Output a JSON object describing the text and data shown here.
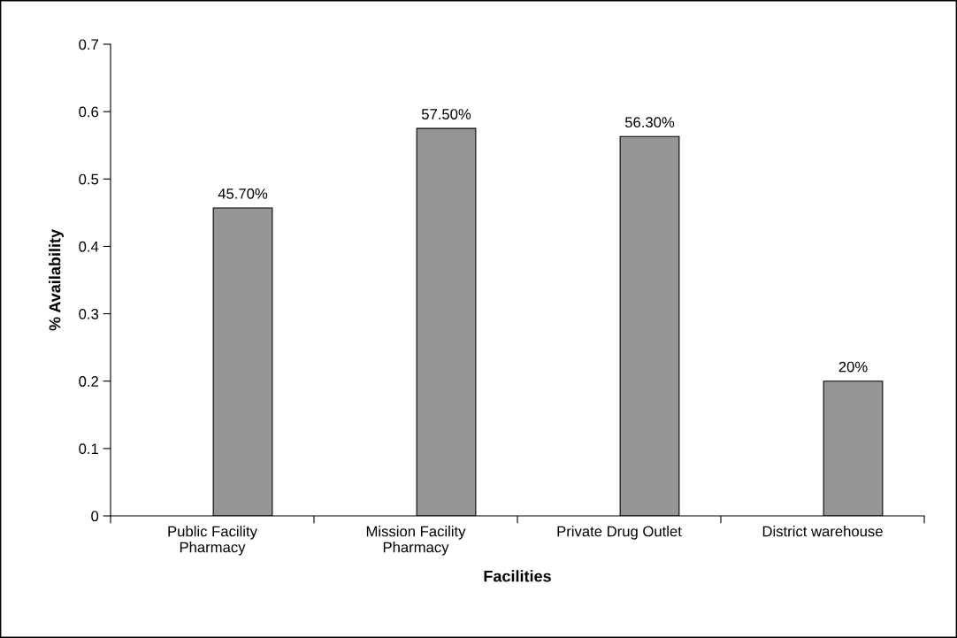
{
  "chart_data": {
    "type": "bar",
    "categories": [
      "Public Facility\nPharmacy",
      "Mission Facility\nPharmacy",
      "Private Drug Outlet",
      "District warehouse"
    ],
    "values": [
      0.457,
      0.575,
      0.563,
      0.2
    ],
    "value_labels": [
      "45.70%",
      "57.50%",
      "56.30%",
      "20%"
    ],
    "color": "#969696",
    "xlabel": "Facilities",
    "ylabel": "% Availability",
    "ylim": [
      0,
      0.7
    ],
    "yticks": [
      0,
      0.1,
      0.2,
      0.3,
      0.4,
      0.5,
      0.6,
      0.7
    ],
    "grid": false,
    "legend": false
  }
}
